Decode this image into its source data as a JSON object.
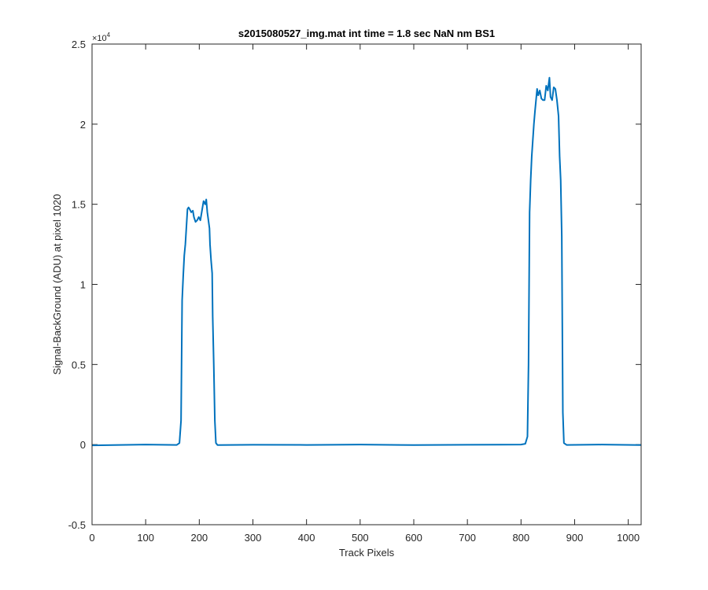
{
  "chart_data": {
    "type": "line",
    "title": "s2015080527_img.mat int time = 1.8 sec  NaN nm BS1",
    "xlabel": "Track Pixels",
    "ylabel": "Signal-BackGround (ADU) at pixel 1020",
    "xlim": [
      0,
      1024
    ],
    "ylim": [
      -5000,
      25000
    ],
    "xticks": [
      0,
      100,
      200,
      300,
      400,
      500,
      600,
      700,
      800,
      900,
      1000
    ],
    "xtick_labels": [
      "0",
      "100",
      "200",
      "300",
      "400",
      "500",
      "600",
      "700",
      "800",
      "900",
      "1000"
    ],
    "yticks": [
      -5000,
      0,
      5000,
      10000,
      15000,
      20000,
      25000
    ],
    "ytick_labels": [
      "-0.5",
      "0",
      "0.5",
      "1",
      "1.5",
      "2",
      "2.5"
    ],
    "y_exponent_base": "×10",
    "y_exponent_power": "4",
    "grid": false,
    "legend": "none",
    "line_color": "#0072BD",
    "series": [
      {
        "x": [
          0,
          100,
          158,
          163,
          166,
          168,
          170,
          172,
          174,
          176,
          178,
          180,
          182,
          185,
          188,
          190,
          193,
          196,
          199,
          202,
          205,
          208,
          211,
          213,
          215,
          217,
          219,
          220,
          222,
          224,
          225,
          227,
          229,
          231,
          234,
          300,
          400,
          500,
          600,
          700,
          800,
          808,
          812,
          814,
          816,
          818,
          820,
          822,
          824,
          826,
          828,
          830,
          832,
          835,
          838,
          841,
          844,
          847,
          850,
          853,
          855,
          858,
          861,
          864,
          867,
          870,
          872,
          874,
          876,
          878,
          880,
          885,
          950,
          1024
        ],
        "y": [
          -50,
          0,
          -20,
          100,
          1500,
          9000,
          10500,
          11800,
          12500,
          13600,
          14700,
          14800,
          14700,
          14500,
          14600,
          14200,
          13900,
          14000,
          14200,
          14000,
          14600,
          15200,
          15000,
          15300,
          14500,
          14000,
          13500,
          12500,
          11500,
          10700,
          8000,
          5000,
          1500,
          100,
          -30,
          -10,
          -20,
          0,
          -30,
          -10,
          0,
          50,
          500,
          5000,
          14500,
          16500,
          18000,
          19000,
          20000,
          20800,
          21500,
          22200,
          21800,
          22100,
          21600,
          21500,
          21500,
          22400,
          22100,
          22900,
          21700,
          21500,
          22300,
          22200,
          21500,
          20500,
          18000,
          16500,
          13000,
          2000,
          100,
          -20,
          0,
          -30
        ]
      }
    ]
  }
}
